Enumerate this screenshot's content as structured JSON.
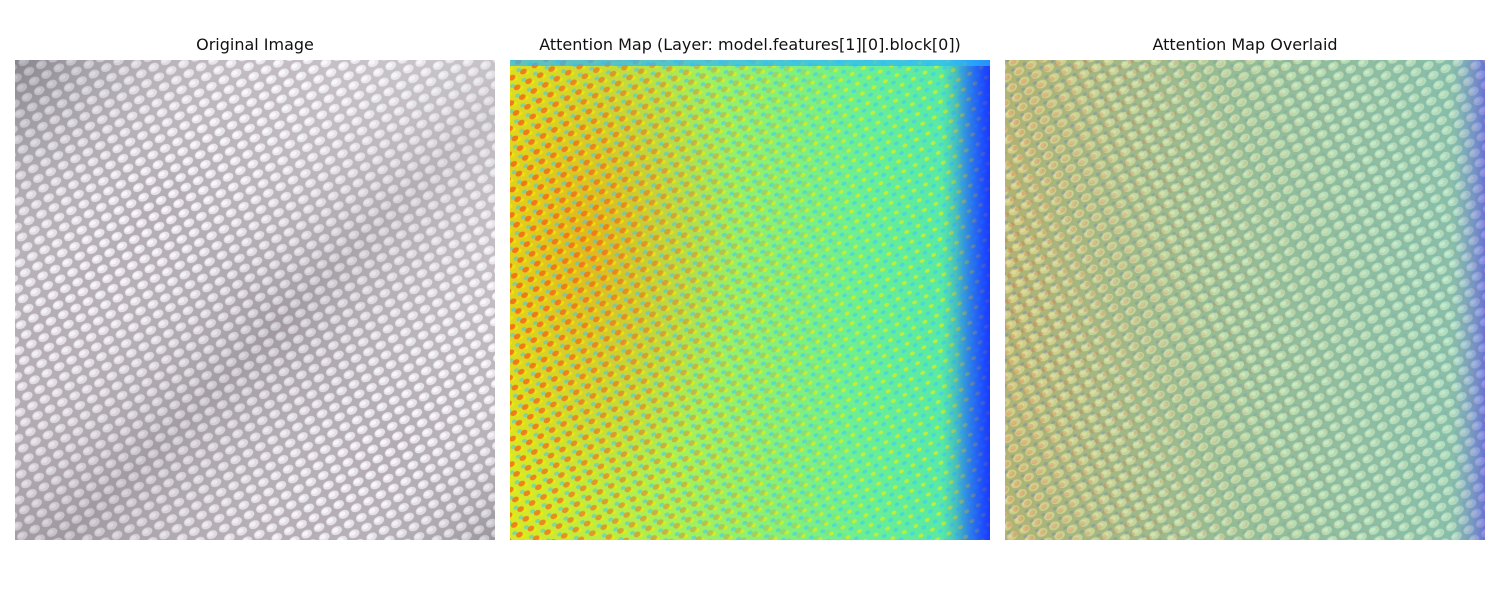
{
  "panels": [
    {
      "title": "Original Image",
      "content": "fabric texture photograph"
    },
    {
      "title": "Attention Map (Layer: model.features[1][0].block[0])",
      "content": "jet colormap heatmap"
    },
    {
      "title": "Attention Map Overlaid",
      "content": "heatmap overlaid on fabric photograph"
    }
  ]
}
